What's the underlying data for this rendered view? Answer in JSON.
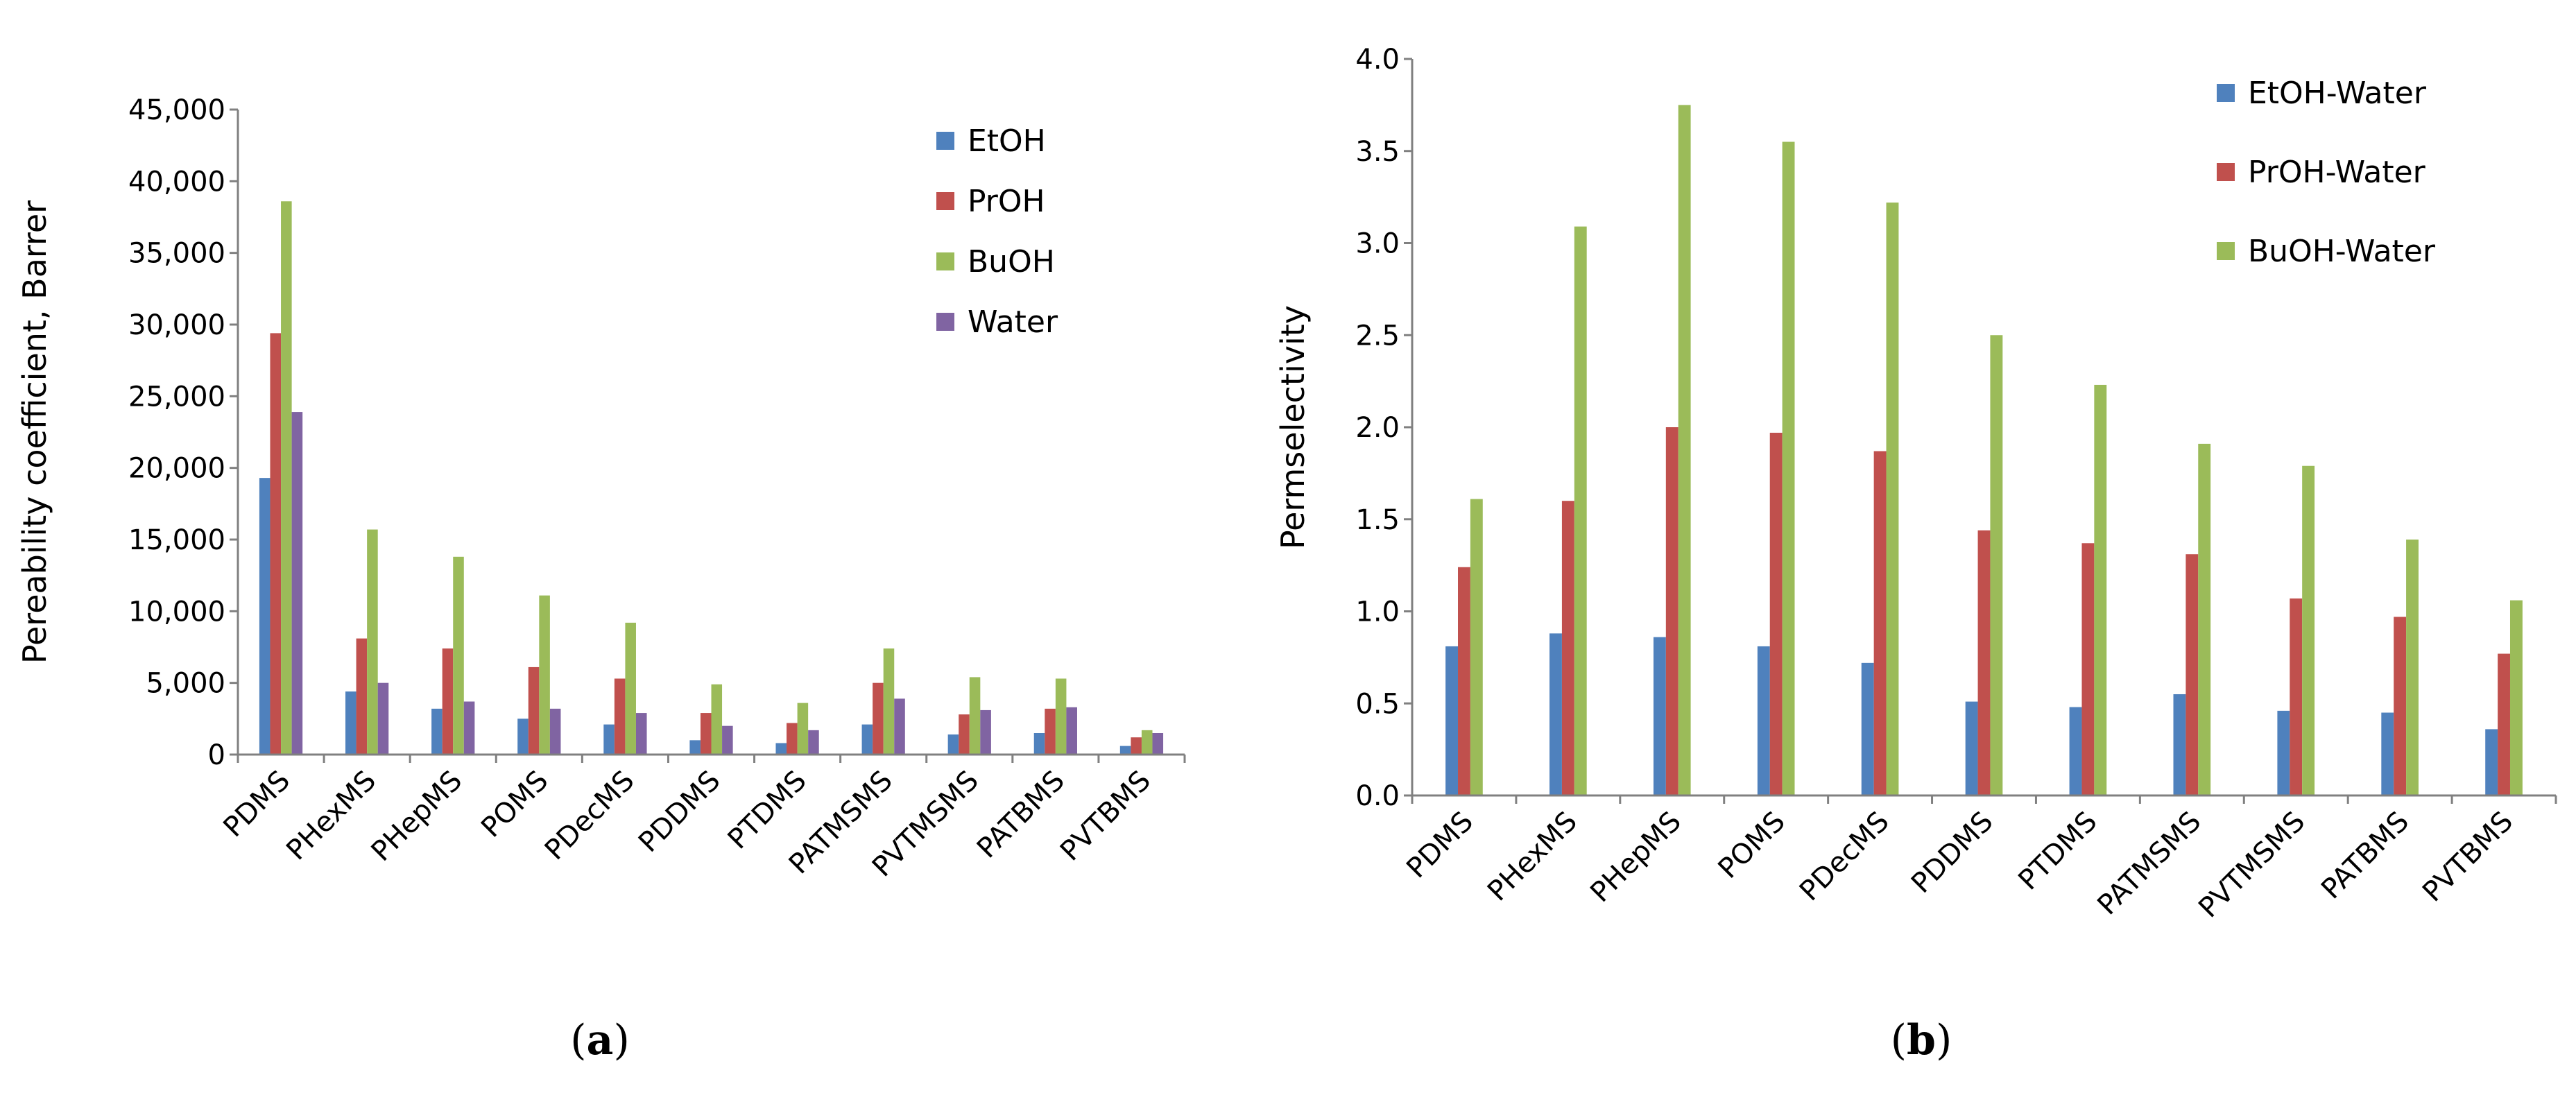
{
  "chart_data": [
    {
      "type": "bar",
      "panel_label": "(a)",
      "title": "",
      "xlabel": "",
      "ylabel": "Pereability coefficient, Barrer",
      "ylim": [
        0,
        45000
      ],
      "ytick_step": 5000,
      "yticks": [
        "0",
        "5,000",
        "10,000",
        "15,000",
        "20,000",
        "25,000",
        "30,000",
        "35,000",
        "40,000",
        "45,000"
      ],
      "grid": false,
      "legend_position": "top-right",
      "categories": [
        "PDMS",
        "PHexMS",
        "PHepMS",
        "POMS",
        "PDecMS",
        "PDDMS",
        "PTDMS",
        "PATMSMS",
        "PVTMSMS",
        "PATBMS",
        "PVTBMS"
      ],
      "series": [
        {
          "name": "EtOH",
          "color": "#4F81BD",
          "values": [
            19300,
            4400,
            3200,
            2500,
            2100,
            1000,
            800,
            2100,
            1400,
            1500,
            600
          ]
        },
        {
          "name": "PrOH",
          "color": "#C0504D",
          "values": [
            29400,
            8100,
            7400,
            6100,
            5300,
            2900,
            2200,
            5000,
            2800,
            3200,
            1200
          ]
        },
        {
          "name": "BuOH",
          "color": "#9BBB59",
          "values": [
            38600,
            15700,
            13800,
            11100,
            9200,
            4900,
            3600,
            7400,
            5400,
            5300,
            1700
          ]
        },
        {
          "name": "Water",
          "color": "#8064A2",
          "values": [
            23900,
            5000,
            3700,
            3200,
            2900,
            2000,
            1700,
            3900,
            3100,
            3300,
            1500
          ]
        }
      ]
    },
    {
      "type": "bar",
      "panel_label": "(b)",
      "title": "",
      "xlabel": "",
      "ylabel": "Permselectivity",
      "ylim": [
        0,
        4.0
      ],
      "ytick_step": 0.5,
      "yticks": [
        "0.0",
        "0.5",
        "1.0",
        "1.5",
        "2.0",
        "2.5",
        "3.0",
        "3.5",
        "4.0"
      ],
      "grid": false,
      "legend_position": "top-right",
      "categories": [
        "PDMS",
        "PHexMS",
        "PHepMS",
        "POMS",
        "PDecMS",
        "PDDMS",
        "PTDMS",
        "PATMSMS",
        "PVTMSMS",
        "PATBMS",
        "PVTBMS"
      ],
      "series": [
        {
          "name": "EtOH-Water",
          "color": "#4F81BD",
          "values": [
            0.81,
            0.88,
            0.86,
            0.81,
            0.72,
            0.51,
            0.48,
            0.55,
            0.46,
            0.45,
            0.36
          ]
        },
        {
          "name": "PrOH-Water",
          "color": "#C0504D",
          "values": [
            1.24,
            1.6,
            2.0,
            1.97,
            1.87,
            1.44,
            1.37,
            1.31,
            1.07,
            0.97,
            0.77
          ]
        },
        {
          "name": "BuOH-Water",
          "color": "#9BBB59",
          "values": [
            1.61,
            3.09,
            3.75,
            3.55,
            3.22,
            2.5,
            2.23,
            1.91,
            1.79,
            1.39,
            1.06
          ]
        }
      ]
    }
  ]
}
